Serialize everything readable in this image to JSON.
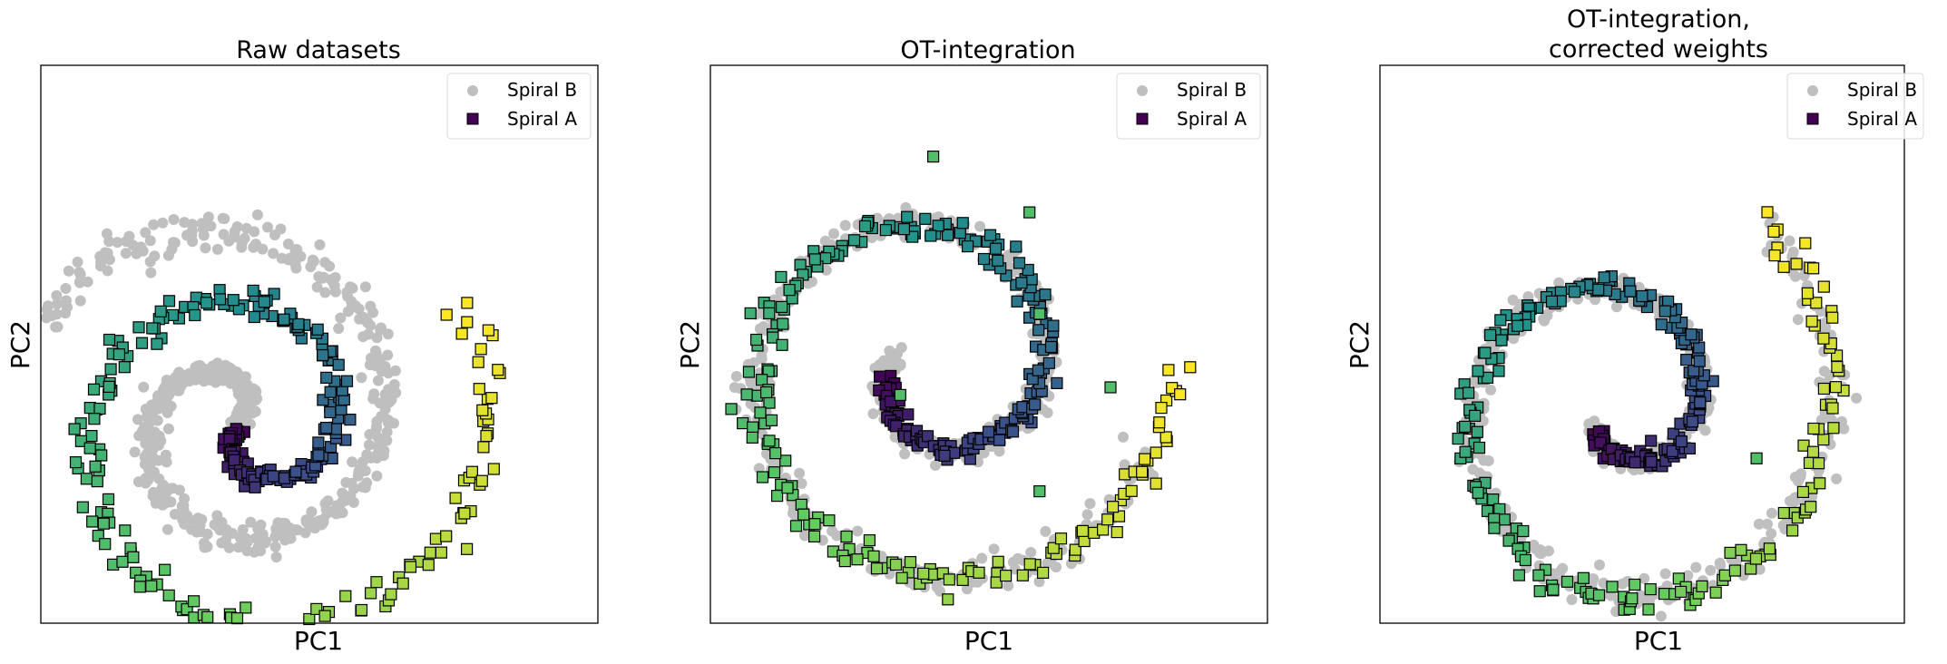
{
  "colors": {
    "spiral_b": "#bfbfbf",
    "spiral_a_gradient": [
      "#440154",
      "#3b528b",
      "#21918c",
      "#5ec962",
      "#fde725"
    ],
    "edge": "#000000"
  },
  "chart_data": [
    {
      "type": "scatter",
      "title": "Raw datasets",
      "xlabel": "PC1",
      "ylabel": "PC2",
      "xticks": [],
      "yticks": [],
      "xlim": [
        -1.1,
        1.1
      ],
      "ylim": [
        -1.1,
        1.1
      ],
      "legend": {
        "position": "top-right",
        "entries": [
          "Spiral B",
          "Spiral A"
        ]
      },
      "series": [
        {
          "name": "Spiral B",
          "marker": "circle",
          "color": "#bfbfbf",
          "shape": "spiral",
          "center": [
            -0.35,
            -0.3
          ],
          "radius_start": 0.03,
          "radius_end": 0.92,
          "angle_start_deg": 0,
          "angle_end_deg": 560,
          "count": 620
        },
        {
          "name": "Spiral A",
          "marker": "square",
          "colormap": "viridis",
          "shape": "spiral",
          "center": [
            -0.27,
            -0.33
          ],
          "radius_start": 0.05,
          "radius_end": 0.99,
          "angle_start_deg": 190,
          "angle_end_deg": 750,
          "count": 300
        }
      ]
    },
    {
      "type": "scatter",
      "title": "OT-integration",
      "xlabel": "PC1",
      "ylabel": "PC2",
      "xticks": [],
      "yticks": [],
      "xlim": [
        -1.1,
        1.1
      ],
      "ylim": [
        -1.1,
        1.1
      ],
      "legend": {
        "position": "top-right",
        "entries": [
          "Spiral B",
          "Spiral A"
        ]
      },
      "series": [
        {
          "name": "Spiral B",
          "marker": "circle",
          "color": "#bfbfbf",
          "shape": "spiral",
          "center": [
            -0.22,
            -0.1
          ],
          "radius_start": 0.16,
          "radius_end": 0.92,
          "angle_start_deg": 160,
          "angle_end_deg": 700,
          "count": 500
        },
        {
          "name": "Spiral A",
          "marker": "square",
          "colormap": "viridis",
          "shape": "spiral",
          "center": [
            -0.22,
            -0.1
          ],
          "radius_start": 0.18,
          "radius_end": 0.95,
          "angle_start_deg": 190,
          "angle_end_deg": 720,
          "count": 320,
          "outliers": [
            [
              -0.22,
              0.74
            ],
            [
              0.16,
              0.52
            ],
            [
              0.2,
              0.12
            ],
            [
              0.48,
              -0.17
            ],
            [
              -0.35,
              -0.2
            ],
            [
              0.2,
              -0.58
            ]
          ]
        }
      ]
    },
    {
      "type": "scatter",
      "title": "OT-integration,\ncorrected weights",
      "xlabel": "PC1",
      "ylabel": "PC2",
      "xticks": [],
      "yticks": [],
      "xlim": [
        -1.1,
        1.1
      ],
      "ylim": [
        -1.1,
        1.1
      ],
      "legend": {
        "position": "top-right",
        "entries": [
          "Spiral B",
          "Spiral A"
        ]
      },
      "series": [
        {
          "name": "Spiral B",
          "marker": "circle",
          "color": "#bfbfbf",
          "shape": "spiral",
          "center": [
            -0.1,
            -0.25
          ],
          "radius_start": 0.12,
          "radius_end": 0.95,
          "angle_start_deg": 220,
          "angle_end_deg": 770,
          "count": 500
        },
        {
          "name": "Spiral A",
          "marker": "square",
          "colormap": "viridis",
          "shape": "spiral",
          "center": [
            -0.1,
            -0.25
          ],
          "radius_start": 0.13,
          "radius_end": 0.97,
          "angle_start_deg": 230,
          "angle_end_deg": 770,
          "count": 300,
          "outliers": [
            [
              0.48,
              -0.45
            ]
          ]
        }
      ]
    }
  ]
}
